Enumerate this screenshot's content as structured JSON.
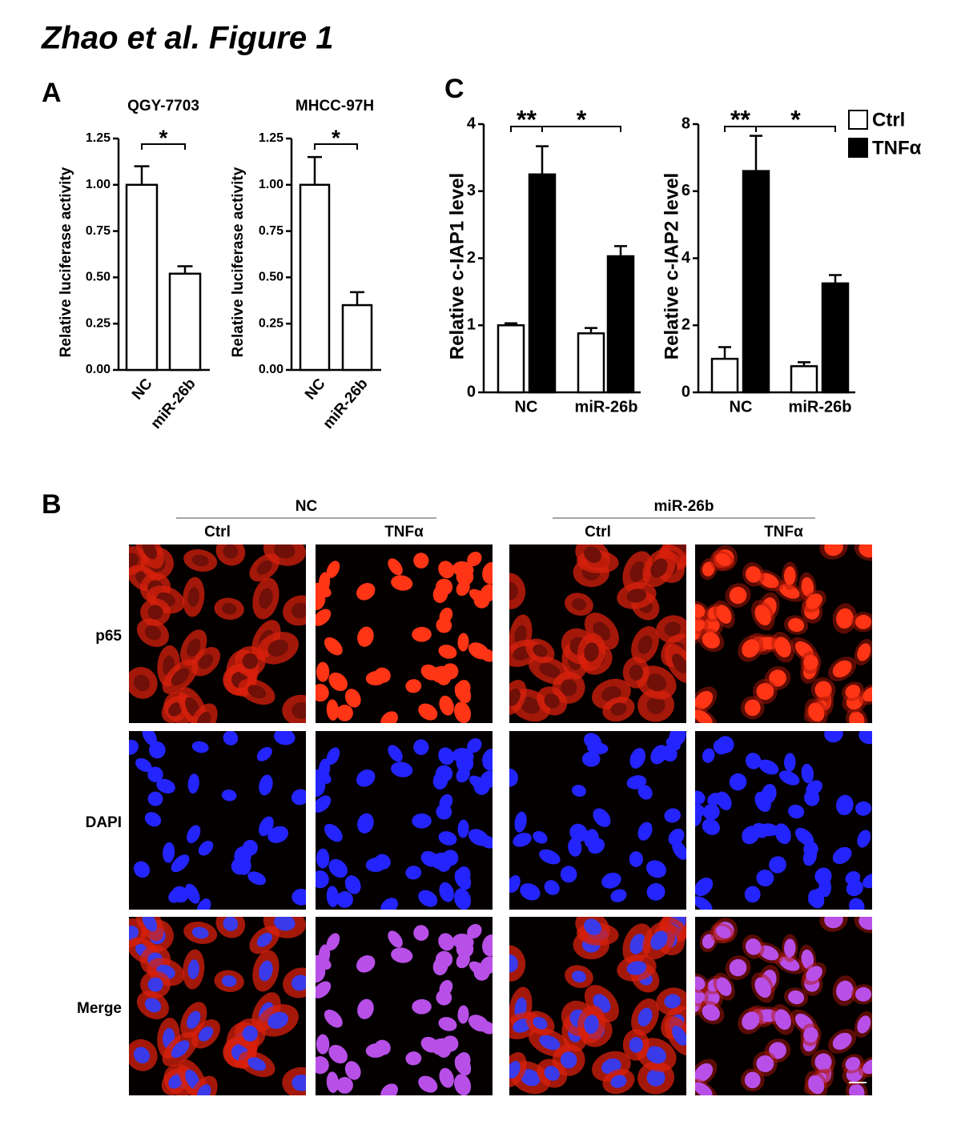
{
  "title": "Zhao et al. Figure 1",
  "panels": [
    "A",
    "B",
    "C"
  ],
  "chart_data": [
    {
      "type": "bar",
      "title": "QGY-7703",
      "y_label": "Relative luciferase activity",
      "categories": [
        "NC",
        "miR-26b"
      ],
      "values": [
        1.0,
        0.52
      ],
      "errors": [
        0.1,
        0.04
      ],
      "color": "#ffffff",
      "ylim": [
        0,
        1.25
      ],
      "yticks": [
        {
          "value": 0,
          "label": "0.00"
        },
        0.25,
        {
          "value": 0.5,
          "label": "0.50"
        },
        0.75,
        {
          "value": 1,
          "label": "1.00"
        },
        1.25
      ],
      "annotations": [
        "*"
      ]
    },
    {
      "type": "bar",
      "title": "MHCC-97H",
      "y_label": "Relative luciferase activity",
      "categories": [
        "NC",
        "miR-26b"
      ],
      "values": [
        1.0,
        0.35
      ],
      "errors": [
        0.15,
        0.07
      ],
      "color": "#ffffff",
      "ylim": [
        0,
        1.25
      ],
      "yticks": [
        {
          "value": 0,
          "label": "0.00"
        },
        0.25,
        {
          "value": 0.5,
          "label": "0.50"
        },
        0.75,
        {
          "value": 1,
          "label": "1.00"
        },
        1.25
      ],
      "annotations": [
        "*"
      ]
    },
    {
      "type": "bar",
      "y_label": "Relative c-IAP1 level",
      "categories": [
        "NC",
        "miR-26b"
      ],
      "series": [
        {
          "color": "#ffffff",
          "values": [
            1.0,
            0.88
          ],
          "errors": [
            0.03,
            0.08
          ]
        },
        {
          "color": "#000000",
          "values": [
            3.25,
            2.03
          ],
          "errors": [
            0.42,
            0.15
          ]
        }
      ],
      "ylim": [
        0,
        4
      ],
      "yticks": [
        0,
        1,
        2,
        3,
        4
      ],
      "annotations": [
        "**",
        "*"
      ]
    },
    {
      "type": "bar",
      "y_label": "Relative c-IAP2 level",
      "categories": [
        "NC",
        "miR-26b"
      ],
      "series": [
        {
          "name": "Ctrl",
          "color": "#ffffff",
          "values": [
            1.0,
            0.78
          ],
          "errors": [
            0.35,
            0.12
          ]
        },
        {
          "name": "TNFα",
          "color": "#000000",
          "values": [
            6.6,
            3.25
          ],
          "errors": [
            1.05,
            0.25
          ]
        }
      ],
      "ylim": [
        0,
        8
      ],
      "yticks": [
        0,
        2,
        4,
        6,
        8
      ],
      "annotations": [
        "**",
        "*"
      ]
    }
  ],
  "image_grid": {
    "groups": [
      {
        "label": "NC",
        "columns": [
          "Ctrl",
          "TNFα"
        ]
      },
      {
        "label": "miR-26b",
        "columns": [
          "Ctrl",
          "TNFα"
        ]
      }
    ],
    "rows": [
      "p65",
      "DAPI",
      "Merge"
    ]
  }
}
